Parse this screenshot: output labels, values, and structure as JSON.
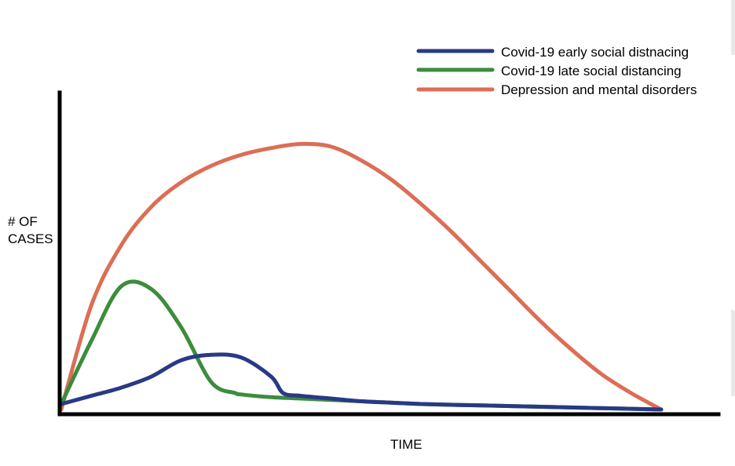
{
  "chart_data": {
    "type": "line",
    "xlabel": "TIME",
    "ylabel": [
      "# OF",
      "CASES"
    ],
    "xlim": [
      0,
      100
    ],
    "ylim": [
      0,
      100
    ],
    "grid": false,
    "ticks": false,
    "legend_position": "top-right",
    "series": [
      {
        "name": "Covid-19 early social distnacing",
        "color": "#283a84",
        "x": [
          0,
          5,
          10,
          15,
          20,
          25,
          30,
          35,
          37,
          40,
          45,
          50,
          55,
          60,
          70,
          80,
          90,
          100
        ],
        "y": [
          2,
          5,
          8,
          12,
          18,
          20,
          19,
          12,
          6,
          5,
          4,
          3,
          2.5,
          2,
          1.5,
          1,
          0.5,
          0
        ]
      },
      {
        "name": "Covid-19 late social distancing",
        "color": "#3c8c3c",
        "x": [
          0,
          5,
          10,
          15,
          20,
          25,
          29,
          30,
          35,
          40,
          45,
          50,
          55,
          60,
          70,
          80,
          90,
          100
        ],
        "y": [
          2,
          25,
          45,
          44,
          30,
          10,
          6,
          5.5,
          4.5,
          4,
          3.5,
          3,
          2.5,
          2,
          1.5,
          1,
          0.5,
          0
        ]
      },
      {
        "name": "Depression and mental disorders",
        "color": "#dc6e55",
        "x": [
          0,
          5,
          10,
          15,
          20,
          25,
          30,
          35,
          40,
          45,
          50,
          55,
          60,
          65,
          70,
          75,
          80,
          85,
          90,
          95,
          100
        ],
        "y": [
          0,
          38,
          60,
          74,
          83,
          89,
          93,
          95.5,
          97,
          96,
          91,
          84,
          75,
          65,
          54,
          43,
          32,
          22,
          13,
          6,
          0
        ]
      }
    ]
  }
}
